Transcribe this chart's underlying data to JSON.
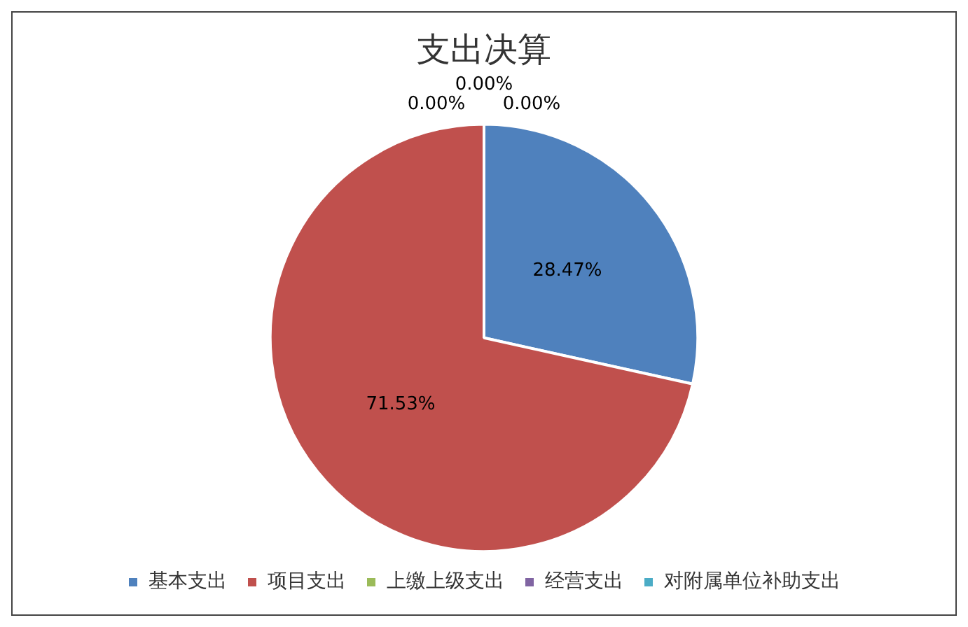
{
  "chart_data": {
    "type": "pie",
    "title": "支出决算",
    "categories": [
      "基本支出",
      "项目支出",
      "上缴上级支出",
      "经营支出",
      "对附属单位补助支出"
    ],
    "values": [
      28.47,
      71.53,
      0,
      0,
      0
    ],
    "colors": [
      "#4f81bd",
      "#c0504d",
      "#9bbb59",
      "#8064a2",
      "#4bacc6"
    ],
    "value_labels": [
      "28.47%",
      "71.53%",
      "0.00%",
      "0.00%",
      "0.00%"
    ],
    "legend": "bottom"
  }
}
